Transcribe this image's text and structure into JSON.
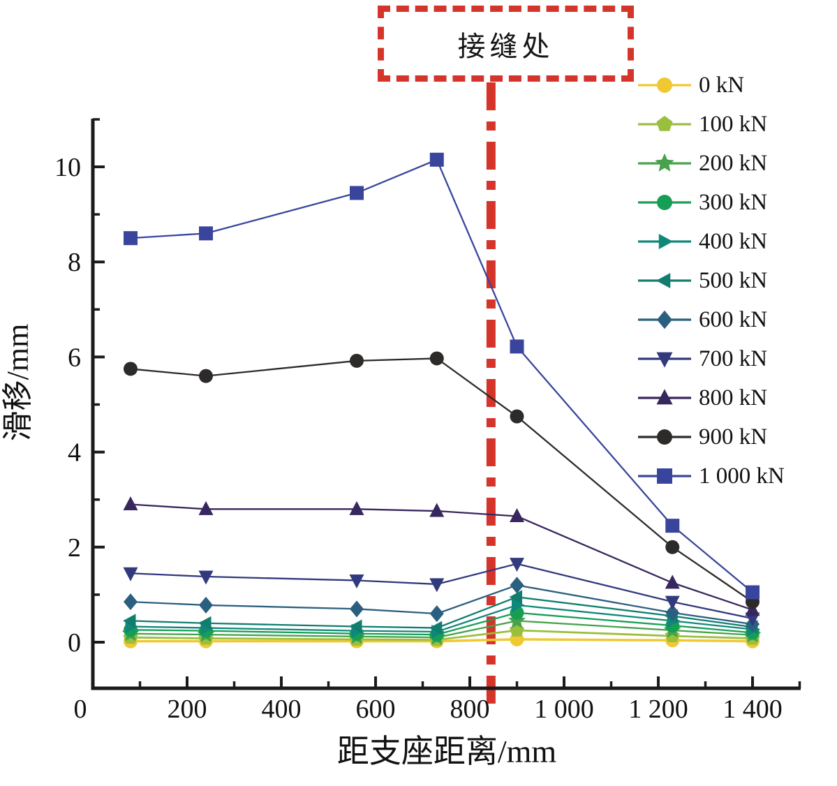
{
  "annotation_box": {
    "label": "接缝处"
  },
  "chart_data": {
    "type": "line",
    "title": "",
    "xlabel": "距支座距离/mm",
    "ylabel": "滑移/mm",
    "xlim": [
      0,
      1500
    ],
    "ylim": [
      -1,
      11
    ],
    "grid": false,
    "legend_position": "upper right",
    "x_ticks": [
      {
        "value": 0,
        "label": "0"
      },
      {
        "value": 200,
        "label": "200"
      },
      {
        "value": 400,
        "label": "400"
      },
      {
        "value": 600,
        "label": "600"
      },
      {
        "value": 800,
        "label": "800"
      },
      {
        "value": 1000,
        "label": "1 000"
      },
      {
        "value": 1200,
        "label": "1 200"
      },
      {
        "value": 1400,
        "label": "1 400"
      }
    ],
    "x_minor_ticks": [
      100,
      300,
      500,
      700,
      900,
      1100,
      1300,
      1500
    ],
    "y_ticks": [
      {
        "value": 0,
        "label": "0"
      },
      {
        "value": 2,
        "label": "2"
      },
      {
        "value": 4,
        "label": "4"
      },
      {
        "value": 6,
        "label": "6"
      },
      {
        "value": 8,
        "label": "8"
      },
      {
        "value": 10,
        "label": "10"
      }
    ],
    "y_minor_ticks": [
      1,
      3,
      5,
      7,
      9,
      11
    ],
    "x": [
      80,
      240,
      560,
      730,
      900,
      1230,
      1400
    ],
    "series": [
      {
        "name": "0 kN",
        "marker": "circle",
        "color": "#f0c832",
        "line_width": 3.5,
        "values": [
          0.02,
          0.02,
          0.02,
          0.02,
          0.06,
          0.04,
          0.02
        ]
      },
      {
        "name": "100 kN",
        "marker": "pentagon",
        "color": "#9abf3d",
        "line_width": 2.8,
        "values": [
          0.1,
          0.08,
          0.06,
          0.05,
          0.25,
          0.13,
          0.08
        ]
      },
      {
        "name": "200 kN",
        "marker": "star",
        "color": "#47a24b",
        "line_width": 2.3,
        "values": [
          0.18,
          0.16,
          0.12,
          0.1,
          0.45,
          0.25,
          0.15
        ]
      },
      {
        "name": "300 kN",
        "marker": "circle",
        "color": "#179e55",
        "line_width": 2.3,
        "values": [
          0.26,
          0.24,
          0.18,
          0.16,
          0.62,
          0.35,
          0.2
        ]
      },
      {
        "name": "400 kN",
        "marker": "triangle-right",
        "color": "#0f8879",
        "line_width": 2.3,
        "values": [
          0.33,
          0.3,
          0.24,
          0.22,
          0.78,
          0.45,
          0.27
        ]
      },
      {
        "name": "500 kN",
        "marker": "triangle-left",
        "color": "#117d6e",
        "line_width": 2.3,
        "values": [
          0.45,
          0.4,
          0.33,
          0.3,
          0.95,
          0.55,
          0.32
        ]
      },
      {
        "name": "600 kN",
        "marker": "diamond",
        "color": "#2b5f80",
        "line_width": 2.3,
        "values": [
          0.85,
          0.78,
          0.7,
          0.6,
          1.2,
          0.62,
          0.38
        ]
      },
      {
        "name": "700 kN",
        "marker": "triangle-down",
        "color": "#303a7c",
        "line_width": 2.3,
        "values": [
          1.45,
          1.38,
          1.3,
          1.22,
          1.65,
          0.85,
          0.5
        ]
      },
      {
        "name": "800 kN",
        "marker": "triangle-up",
        "color": "#38265e",
        "line_width": 2.3,
        "values": [
          2.9,
          2.8,
          2.8,
          2.76,
          2.65,
          1.25,
          0.68
        ]
      },
      {
        "name": "900 kN",
        "marker": "circle",
        "color": "#2d2a2a",
        "line_width": 2.3,
        "values": [
          5.75,
          5.6,
          5.92,
          5.97,
          4.75,
          2.0,
          0.85
        ]
      },
      {
        "name": "1 000 kN",
        "marker": "square",
        "color": "#39459c",
        "line_width": 2.3,
        "values": [
          8.5,
          8.6,
          9.45,
          10.15,
          6.22,
          2.45,
          1.05
        ]
      }
    ],
    "annotations": {
      "joint_line_x": 845,
      "joint_line_color": "#d5342b",
      "joint_line_shadow_color": "#8c8c8c",
      "box_label": "接缝处",
      "box_border_color": "#d5342b"
    },
    "axis_color": "#1a1a1a"
  }
}
